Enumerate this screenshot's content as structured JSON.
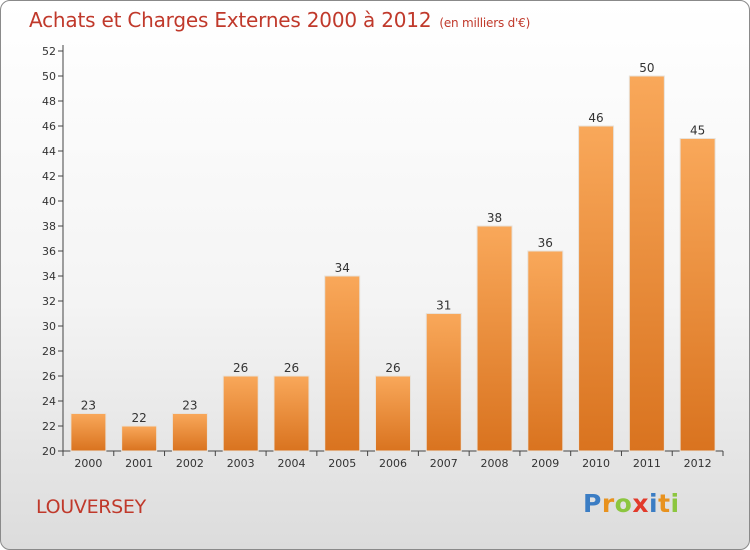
{
  "title": "Achats et Charges Externes 2000 à 2012",
  "subtitle": "(en milliers d'€)",
  "commune": "LOUVERSEY",
  "logo": {
    "letters": [
      "P",
      "r",
      "o",
      "x",
      "i",
      "t",
      "i"
    ],
    "colors": [
      "#3b7dc4",
      "#e8921e",
      "#8cc63f",
      "#e23a2b",
      "#3b7dc4",
      "#e8921e",
      "#8cc63f"
    ]
  },
  "colors": {
    "bar_top": "#f9a85a",
    "bar_bottom": "#d9731f",
    "title": "#c0392b"
  },
  "chart_data": {
    "type": "bar",
    "categories": [
      "2000",
      "2001",
      "2002",
      "2003",
      "2004",
      "2005",
      "2006",
      "2007",
      "2008",
      "2009",
      "2010",
      "2011",
      "2012"
    ],
    "values": [
      23,
      22,
      23,
      26,
      26,
      34,
      26,
      31,
      38,
      36,
      46,
      50,
      45
    ],
    "ylim": [
      20,
      52
    ],
    "yticks": [
      20,
      22,
      24,
      26,
      28,
      30,
      32,
      34,
      36,
      38,
      40,
      42,
      44,
      46,
      48,
      50,
      52
    ],
    "grid": false,
    "data_labels": true
  }
}
